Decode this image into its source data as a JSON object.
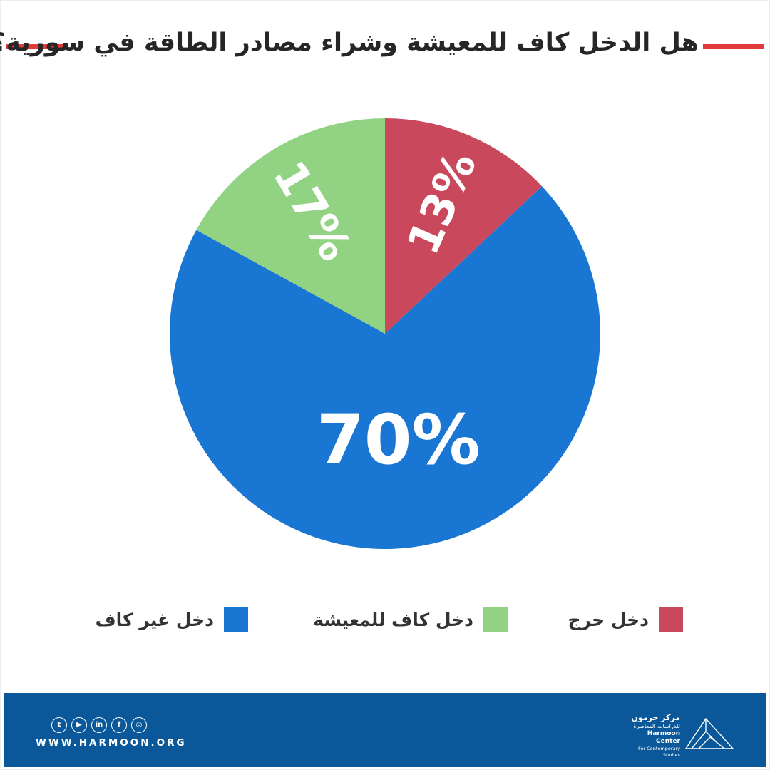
{
  "title": "هل الدخل كاف للمعيشة وشراء مصادر الطاقة في سورية؟",
  "chart_data": {
    "type": "pie",
    "title": "هل الدخل كاف للمعيشة وشراء مصادر الطاقة في سورية؟",
    "slices": [
      {
        "label": "دخل حرج",
        "value": 13,
        "display": "13%",
        "color": "#c9485b"
      },
      {
        "label": "دخل غير كاف",
        "value": 70,
        "display": "70%",
        "color": "#1976d2"
      },
      {
        "label": "دخل كاف للمعيشة",
        "value": 17,
        "display": "17%",
        "color": "#92d283"
      }
    ],
    "legend_position": "bottom"
  },
  "legend": [
    {
      "label": "دخل حرج",
      "color": "#c9485b"
    },
    {
      "label": "دخل كاف للمعيشة",
      "color": "#92d283"
    },
    {
      "label": "دخل غير كاف",
      "color": "#1976d2"
    }
  ],
  "footer": {
    "website": "WWW.HARMOON.ORG",
    "socials": [
      {
        "name": "twitter-icon",
        "glyph": "t"
      },
      {
        "name": "youtube-icon",
        "glyph": "▶"
      },
      {
        "name": "linkedin-icon",
        "glyph": "in"
      },
      {
        "name": "facebook-icon",
        "glyph": "f"
      },
      {
        "name": "instagram-icon",
        "glyph": "◎"
      }
    ],
    "logo_ar_name": "مركز حرمون",
    "logo_ar_sub": "للدراسات المعاصرة",
    "logo_en_name": "Harmoon Center",
    "logo_en_sub": "For Contemporary Studies"
  },
  "colors": {
    "accent_red": "#e03a3a",
    "footer_blue": "#0a5899"
  }
}
